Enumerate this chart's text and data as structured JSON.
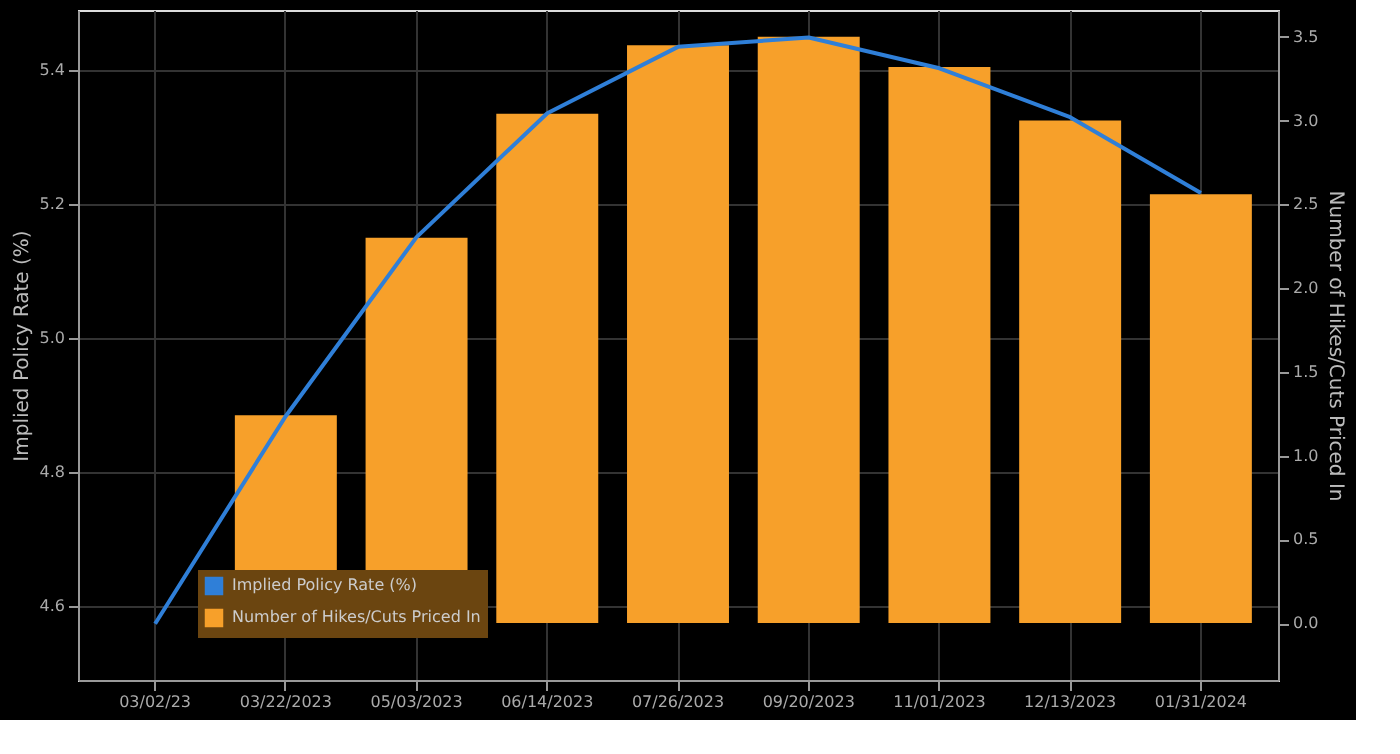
{
  "chart_data": {
    "type": "bar",
    "ylabel": "Implied Policy Rate (%)",
    "y2label": "Number of Hikes/Cuts Priced In",
    "categories": [
      "03/02/23",
      "03/22/2023",
      "05/03/2023",
      "06/14/2023",
      "07/26/2023",
      "09/20/2023",
      "11/01/2023",
      "12/13/2023",
      "01/31/2024"
    ],
    "series": [
      {
        "name": "Implied Policy Rate (%)",
        "type": "line",
        "color": "#2f7fd8",
        "values": [
          4.574,
          4.884,
          5.151,
          5.336,
          5.435,
          5.449,
          5.403,
          5.33,
          5.217
        ]
      },
      {
        "name": "Number of Hikes/Cuts Priced In",
        "axis": "y2",
        "color": "#f7a02a",
        "values": [
          0,
          1.24,
          2.3,
          3.04,
          3.45,
          3.5,
          3.32,
          3.0,
          2.56
        ]
      }
    ],
    "ylim": [
      4.49,
      5.49
    ],
    "yticks": [
      4.6,
      4.8,
      {
        "value": 5,
        "label": "5.0"
      },
      5.2,
      5.4
    ],
    "y2lim": [
      -0.34,
      3.66
    ],
    "y2ticks": [
      {
        "value": 0,
        "label": "0.0"
      },
      0.5,
      {
        "value": 1,
        "label": "1.0"
      },
      1.5,
      {
        "value": 2,
        "label": "2.0"
      },
      2.5,
      {
        "value": 3,
        "label": "3.0"
      },
      3.5
    ],
    "grid": true,
    "legend": "bottom left"
  }
}
